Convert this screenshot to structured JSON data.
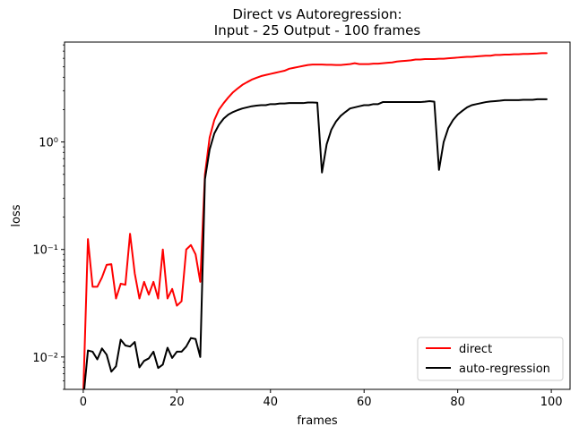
{
  "chart_data": {
    "type": "line",
    "title": "Direct vs Autoregression:",
    "subtitle": "Input - 25 Output - 100 frames",
    "xlabel": "frames",
    "ylabel": "loss",
    "xlim": [
      -4,
      104
    ],
    "ylim": [
      0.005,
      8.5
    ],
    "yscale": "log",
    "x_ticks": [
      0,
      20,
      40,
      60,
      80,
      100
    ],
    "x_tick_labels": [
      "0",
      "20",
      "40",
      "60",
      "80",
      "100"
    ],
    "y_ticks": [
      0.01,
      0.1,
      1
    ],
    "y_tick_labels": [
      "10⁻²",
      "10⁻¹",
      "10⁰"
    ],
    "grid": false,
    "legend_position": "bottom-right",
    "series": [
      {
        "name": "direct",
        "color": "#ff0000",
        "x": [
          0,
          1,
          2,
          3,
          4,
          5,
          6,
          7,
          8,
          9,
          10,
          11,
          12,
          13,
          14,
          15,
          16,
          17,
          18,
          19,
          20,
          21,
          22,
          23,
          24,
          25,
          26,
          27,
          28,
          29,
          30,
          31,
          32,
          33,
          34,
          35,
          36,
          37,
          38,
          39,
          40,
          41,
          42,
          43,
          44,
          45,
          46,
          47,
          48,
          49,
          50,
          51,
          52,
          53,
          54,
          55,
          56,
          57,
          58,
          59,
          60,
          61,
          62,
          63,
          64,
          65,
          66,
          67,
          68,
          69,
          70,
          71,
          72,
          73,
          74,
          75,
          76,
          77,
          78,
          79,
          80,
          81,
          82,
          83,
          84,
          85,
          86,
          87,
          88,
          89,
          90,
          91,
          92,
          93,
          94,
          95,
          96,
          97,
          98,
          99
        ],
        "values": [
          0.0045,
          0.125,
          0.045,
          0.045,
          0.055,
          0.072,
          0.073,
          0.035,
          0.048,
          0.047,
          0.14,
          0.06,
          0.035,
          0.05,
          0.038,
          0.05,
          0.035,
          0.1,
          0.035,
          0.043,
          0.03,
          0.033,
          0.1,
          0.11,
          0.09,
          0.05,
          0.5,
          1.1,
          1.6,
          2.0,
          2.3,
          2.6,
          2.9,
          3.15,
          3.4,
          3.6,
          3.8,
          3.95,
          4.1,
          4.2,
          4.3,
          4.4,
          4.5,
          4.6,
          4.8,
          4.9,
          5.0,
          5.1,
          5.2,
          5.25,
          5.25,
          5.25,
          5.22,
          5.22,
          5.2,
          5.2,
          5.25,
          5.3,
          5.4,
          5.3,
          5.3,
          5.3,
          5.35,
          5.35,
          5.4,
          5.45,
          5.5,
          5.6,
          5.65,
          5.7,
          5.75,
          5.85,
          5.85,
          5.9,
          5.9,
          5.9,
          5.95,
          5.95,
          6.0,
          6.05,
          6.1,
          6.15,
          6.2,
          6.2,
          6.25,
          6.3,
          6.35,
          6.35,
          6.45,
          6.45,
          6.5,
          6.5,
          6.55,
          6.55,
          6.6,
          6.6,
          6.62,
          6.65,
          6.7,
          6.7
        ]
      },
      {
        "name": "auto-regression",
        "color": "#000000",
        "x": [
          0,
          1,
          2,
          3,
          4,
          5,
          6,
          7,
          8,
          9,
          10,
          11,
          12,
          13,
          14,
          15,
          16,
          17,
          18,
          19,
          20,
          21,
          22,
          23,
          24,
          25,
          26,
          27,
          28,
          29,
          30,
          31,
          32,
          33,
          34,
          35,
          36,
          37,
          38,
          39,
          40,
          41,
          42,
          43,
          44,
          45,
          46,
          47,
          48,
          49,
          50,
          51,
          52,
          53,
          54,
          55,
          56,
          57,
          58,
          59,
          60,
          61,
          62,
          63,
          64,
          65,
          66,
          67,
          68,
          69,
          70,
          71,
          72,
          73,
          74,
          75,
          76,
          77,
          78,
          79,
          80,
          81,
          82,
          83,
          84,
          85,
          86,
          87,
          88,
          89,
          90,
          91,
          92,
          93,
          94,
          95,
          96,
          97,
          98,
          99
        ],
        "values": [
          0.004,
          0.0115,
          0.0112,
          0.0095,
          0.012,
          0.0105,
          0.0073,
          0.0082,
          0.0145,
          0.0128,
          0.0125,
          0.0138,
          0.008,
          0.0092,
          0.0097,
          0.0112,
          0.0079,
          0.0085,
          0.0122,
          0.0098,
          0.0112,
          0.0112,
          0.0125,
          0.015,
          0.0147,
          0.01,
          0.45,
          0.85,
          1.2,
          1.45,
          1.65,
          1.8,
          1.9,
          1.98,
          2.05,
          2.1,
          2.15,
          2.18,
          2.2,
          2.2,
          2.25,
          2.25,
          2.28,
          2.28,
          2.3,
          2.3,
          2.3,
          2.3,
          2.33,
          2.33,
          2.32,
          0.52,
          0.95,
          1.3,
          1.55,
          1.75,
          1.9,
          2.05,
          2.1,
          2.15,
          2.2,
          2.2,
          2.25,
          2.25,
          2.35,
          2.35,
          2.35,
          2.35,
          2.35,
          2.35,
          2.35,
          2.35,
          2.35,
          2.37,
          2.4,
          2.37,
          0.55,
          1.0,
          1.35,
          1.6,
          1.8,
          1.95,
          2.1,
          2.2,
          2.25,
          2.3,
          2.35,
          2.38,
          2.4,
          2.42,
          2.45,
          2.45,
          2.45,
          2.45,
          2.47,
          2.47,
          2.47,
          2.5,
          2.5,
          2.5
        ]
      }
    ]
  }
}
